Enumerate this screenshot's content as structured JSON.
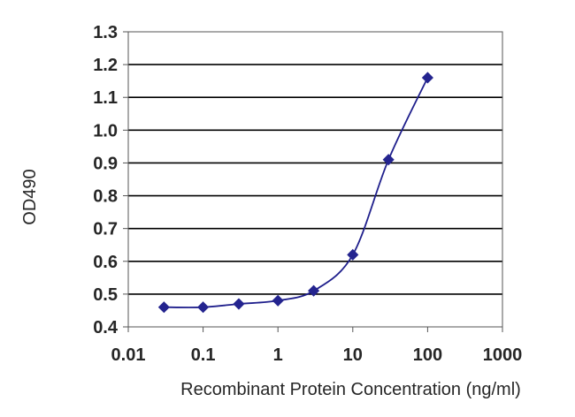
{
  "chart_data": {
    "type": "line",
    "title": "",
    "xlabel": "Recombinant Protein Concentration (ng/ml)",
    "ylabel": "OD490",
    "x_scale": "log",
    "xlim": [
      0.01,
      1000
    ],
    "ylim": [
      0.4,
      1.3
    ],
    "x_ticks": [
      "0.01",
      "0.1",
      "1",
      "10",
      "100",
      "1000"
    ],
    "y_ticks": [
      "0.4",
      "0.5",
      "0.6",
      "0.7",
      "0.8",
      "0.9",
      "1.0",
      "1.1",
      "1.2",
      "1.3"
    ],
    "grid": "horizontal",
    "legend": "none",
    "colors": {
      "series": "#1f1f8c",
      "marker": "#24248f",
      "grid": "#000000",
      "axis": "#555555"
    },
    "series": [
      {
        "x": [
          0.03,
          0.1,
          0.3,
          1,
          3,
          10,
          30,
          100
        ],
        "y": [
          0.46,
          0.46,
          0.47,
          0.48,
          0.51,
          0.62,
          0.91,
          1.16
        ]
      }
    ]
  }
}
